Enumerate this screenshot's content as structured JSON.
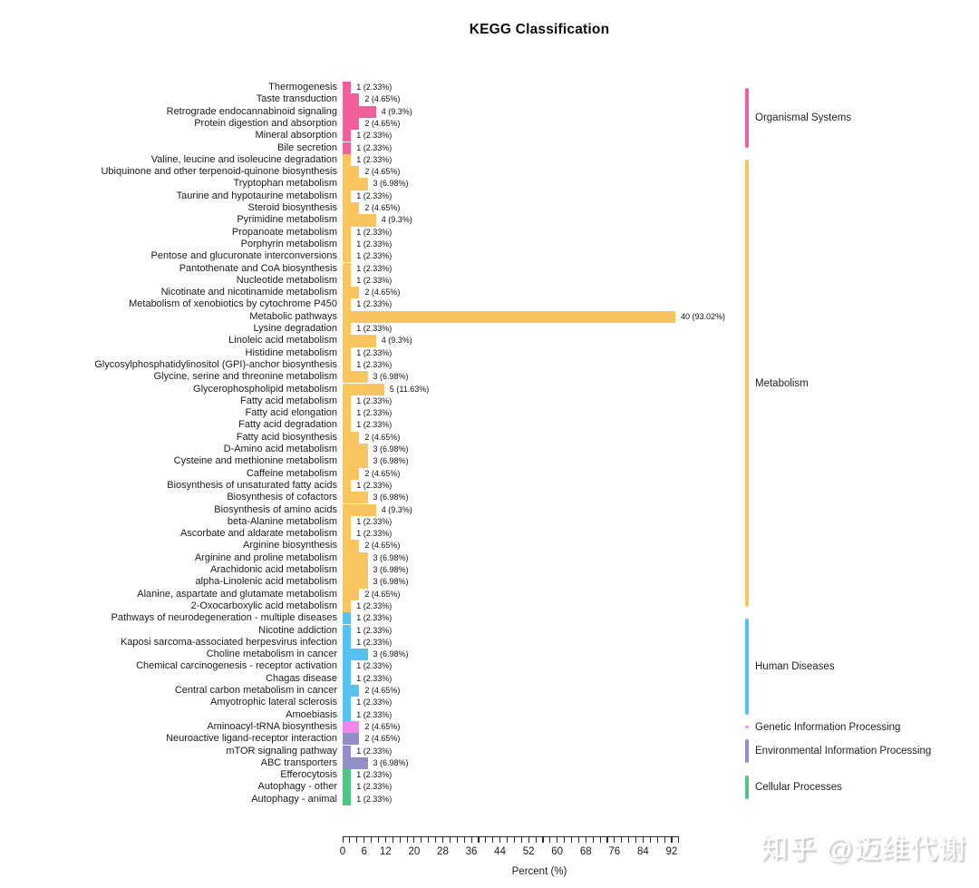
{
  "watermark": "知乎 @迈维代谢",
  "chart_data": {
    "type": "bar",
    "orientation": "horizontal",
    "title": "KEGG Classification",
    "xlabel": "Percent (%)",
    "xlim": [
      0,
      94
    ],
    "x_tick_labels": [
      0,
      6,
      12,
      20,
      28,
      36,
      44,
      52,
      60,
      68,
      76,
      84,
      92
    ],
    "x_minor_tick_step": 2,
    "grid": false,
    "legend_position": "right",
    "groups": [
      {
        "name": "Organismal Systems",
        "color": "#F2609C"
      },
      {
        "name": "Metabolism",
        "color": "#FAC45F"
      },
      {
        "name": "Human Diseases",
        "color": "#56C2F2"
      },
      {
        "name": "Genetic Information Processing",
        "color": "#F286EC"
      },
      {
        "name": "Environmental Information Processing",
        "color": "#908EC6"
      },
      {
        "name": "Cellular Processes",
        "color": "#4EC687"
      }
    ],
    "rows": [
      {
        "pathway": "Thermogenesis",
        "count": 1,
        "percent": 2.33,
        "label": "1 (2.33%)",
        "group": "Organismal Systems"
      },
      {
        "pathway": "Taste transduction",
        "count": 2,
        "percent": 4.65,
        "label": "2 (4.65%)",
        "group": "Organismal Systems"
      },
      {
        "pathway": "Retrograde endocannabinoid signaling",
        "count": 4,
        "percent": 9.3,
        "label": "4 (9.3%)",
        "group": "Organismal Systems"
      },
      {
        "pathway": "Protein digestion and absorption",
        "count": 2,
        "percent": 4.65,
        "label": "2 (4.65%)",
        "group": "Organismal Systems"
      },
      {
        "pathway": "Mineral absorption",
        "count": 1,
        "percent": 2.33,
        "label": "1 (2.33%)",
        "group": "Organismal Systems"
      },
      {
        "pathway": "Bile secretion",
        "count": 1,
        "percent": 2.33,
        "label": "1 (2.33%)",
        "group": "Organismal Systems"
      },
      {
        "pathway": "Valine, leucine and isoleucine degradation",
        "count": 1,
        "percent": 2.33,
        "label": "1 (2.33%)",
        "group": "Metabolism"
      },
      {
        "pathway": "Ubiquinone and other terpenoid-quinone biosynthesis",
        "count": 2,
        "percent": 4.65,
        "label": "2 (4.65%)",
        "group": "Metabolism"
      },
      {
        "pathway": "Tryptophan metabolism",
        "count": 3,
        "percent": 6.98,
        "label": "3 (6.98%)",
        "group": "Metabolism"
      },
      {
        "pathway": "Taurine and hypotaurine metabolism",
        "count": 1,
        "percent": 2.33,
        "label": "1 (2.33%)",
        "group": "Metabolism"
      },
      {
        "pathway": "Steroid biosynthesis",
        "count": 2,
        "percent": 4.65,
        "label": "2 (4.65%)",
        "group": "Metabolism"
      },
      {
        "pathway": "Pyrimidine metabolism",
        "count": 4,
        "percent": 9.3,
        "label": "4 (9.3%)",
        "group": "Metabolism"
      },
      {
        "pathway": "Propanoate metabolism",
        "count": 1,
        "percent": 2.33,
        "label": "1 (2.33%)",
        "group": "Metabolism"
      },
      {
        "pathway": "Porphyrin metabolism",
        "count": 1,
        "percent": 2.33,
        "label": "1 (2.33%)",
        "group": "Metabolism"
      },
      {
        "pathway": "Pentose and glucuronate interconversions",
        "count": 1,
        "percent": 2.33,
        "label": "1 (2.33%)",
        "group": "Metabolism"
      },
      {
        "pathway": "Pantothenate and CoA biosynthesis",
        "count": 1,
        "percent": 2.33,
        "label": "1 (2.33%)",
        "group": "Metabolism"
      },
      {
        "pathway": "Nucleotide metabolism",
        "count": 1,
        "percent": 2.33,
        "label": "1 (2.33%)",
        "group": "Metabolism"
      },
      {
        "pathway": "Nicotinate and nicotinamide metabolism",
        "count": 2,
        "percent": 4.65,
        "label": "2 (4.65%)",
        "group": "Metabolism"
      },
      {
        "pathway": "Metabolism of xenobiotics by cytochrome P450",
        "count": 1,
        "percent": 2.33,
        "label": "1 (2.33%)",
        "group": "Metabolism"
      },
      {
        "pathway": "Metabolic pathways",
        "count": 40,
        "percent": 93.02,
        "label": "40 (93.02%)",
        "group": "Metabolism"
      },
      {
        "pathway": "Lysine degradation",
        "count": 1,
        "percent": 2.33,
        "label": "1 (2.33%)",
        "group": "Metabolism"
      },
      {
        "pathway": "Linoleic acid metabolism",
        "count": 4,
        "percent": 9.3,
        "label": "4 (9.3%)",
        "group": "Metabolism"
      },
      {
        "pathway": "Histidine metabolism",
        "count": 1,
        "percent": 2.33,
        "label": "1 (2.33%)",
        "group": "Metabolism"
      },
      {
        "pathway": "Glycosylphosphatidylinositol (GPI)-anchor biosynthesis",
        "count": 1,
        "percent": 2.33,
        "label": "1 (2.33%)",
        "group": "Metabolism"
      },
      {
        "pathway": "Glycine, serine and threonine metabolism",
        "count": 3,
        "percent": 6.98,
        "label": "3 (6.98%)",
        "group": "Metabolism"
      },
      {
        "pathway": "Glycerophospholipid metabolism",
        "count": 5,
        "percent": 11.63,
        "label": "5 (11.63%)",
        "group": "Metabolism"
      },
      {
        "pathway": "Fatty acid metabolism",
        "count": 1,
        "percent": 2.33,
        "label": "1 (2.33%)",
        "group": "Metabolism"
      },
      {
        "pathway": "Fatty acid elongation",
        "count": 1,
        "percent": 2.33,
        "label": "1 (2.33%)",
        "group": "Metabolism"
      },
      {
        "pathway": "Fatty acid degradation",
        "count": 1,
        "percent": 2.33,
        "label": "1 (2.33%)",
        "group": "Metabolism"
      },
      {
        "pathway": "Fatty acid biosynthesis",
        "count": 2,
        "percent": 4.65,
        "label": "2 (4.65%)",
        "group": "Metabolism"
      },
      {
        "pathway": "D-Amino acid metabolism",
        "count": 3,
        "percent": 6.98,
        "label": "3 (6.98%)",
        "group": "Metabolism"
      },
      {
        "pathway": "Cysteine and methionine metabolism",
        "count": 3,
        "percent": 6.98,
        "label": "3 (6.98%)",
        "group": "Metabolism"
      },
      {
        "pathway": "Caffeine metabolism",
        "count": 2,
        "percent": 4.65,
        "label": "2 (4.65%)",
        "group": "Metabolism"
      },
      {
        "pathway": "Biosynthesis of unsaturated fatty acids",
        "count": 1,
        "percent": 2.33,
        "label": "1 (2.33%)",
        "group": "Metabolism"
      },
      {
        "pathway": "Biosynthesis of cofactors",
        "count": 3,
        "percent": 6.98,
        "label": "3 (6.98%)",
        "group": "Metabolism"
      },
      {
        "pathway": "Biosynthesis of amino acids",
        "count": 4,
        "percent": 9.3,
        "label": "4 (9.3%)",
        "group": "Metabolism"
      },
      {
        "pathway": "beta-Alanine metabolism",
        "count": 1,
        "percent": 2.33,
        "label": "1 (2.33%)",
        "group": "Metabolism"
      },
      {
        "pathway": "Ascorbate and aldarate metabolism",
        "count": 1,
        "percent": 2.33,
        "label": "1 (2.33%)",
        "group": "Metabolism"
      },
      {
        "pathway": "Arginine biosynthesis",
        "count": 2,
        "percent": 4.65,
        "label": "2 (4.65%)",
        "group": "Metabolism"
      },
      {
        "pathway": "Arginine and proline metabolism",
        "count": 3,
        "percent": 6.98,
        "label": "3 (6.98%)",
        "group": "Metabolism"
      },
      {
        "pathway": "Arachidonic acid metabolism",
        "count": 3,
        "percent": 6.98,
        "label": "3 (6.98%)",
        "group": "Metabolism"
      },
      {
        "pathway": "alpha-Linolenic acid metabolism",
        "count": 3,
        "percent": 6.98,
        "label": "3 (6.98%)",
        "group": "Metabolism"
      },
      {
        "pathway": "Alanine, aspartate and glutamate metabolism",
        "count": 2,
        "percent": 4.65,
        "label": "2 (4.65%)",
        "group": "Metabolism"
      },
      {
        "pathway": "2-Oxocarboxylic acid metabolism",
        "count": 1,
        "percent": 2.33,
        "label": "1 (2.33%)",
        "group": "Metabolism"
      },
      {
        "pathway": "Pathways of neurodegeneration - multiple diseases",
        "count": 1,
        "percent": 2.33,
        "label": "1 (2.33%)",
        "group": "Human Diseases"
      },
      {
        "pathway": "Nicotine addiction",
        "count": 1,
        "percent": 2.33,
        "label": "1 (2.33%)",
        "group": "Human Diseases"
      },
      {
        "pathway": "Kaposi sarcoma-associated herpesvirus infection",
        "count": 1,
        "percent": 2.33,
        "label": "1 (2.33%)",
        "group": "Human Diseases"
      },
      {
        "pathway": "Choline metabolism in cancer",
        "count": 3,
        "percent": 6.98,
        "label": "3 (6.98%)",
        "group": "Human Diseases"
      },
      {
        "pathway": "Chemical carcinogenesis - receptor activation",
        "count": 1,
        "percent": 2.33,
        "label": "1 (2.33%)",
        "group": "Human Diseases"
      },
      {
        "pathway": "Chagas disease",
        "count": 1,
        "percent": 2.33,
        "label": "1 (2.33%)",
        "group": "Human Diseases"
      },
      {
        "pathway": "Central carbon metabolism in cancer",
        "count": 2,
        "percent": 4.65,
        "label": "2 (4.65%)",
        "group": "Human Diseases"
      },
      {
        "pathway": "Amyotrophic lateral sclerosis",
        "count": 1,
        "percent": 2.33,
        "label": "1 (2.33%)",
        "group": "Human Diseases"
      },
      {
        "pathway": "Amoebiasis",
        "count": 1,
        "percent": 2.33,
        "label": "1 (2.33%)",
        "group": "Human Diseases"
      },
      {
        "pathway": "Aminoacyl-tRNA biosynthesis",
        "count": 2,
        "percent": 4.65,
        "label": "2 (4.65%)",
        "group": "Genetic Information Processing"
      },
      {
        "pathway": "Neuroactive ligand-receptor interaction",
        "count": 2,
        "percent": 4.65,
        "label": "2 (4.65%)",
        "group": "Environmental Information Processing"
      },
      {
        "pathway": "mTOR signaling pathway",
        "count": 1,
        "percent": 2.33,
        "label": "1 (2.33%)",
        "group": "Environmental Information Processing"
      },
      {
        "pathway": "ABC transporters",
        "count": 3,
        "percent": 6.98,
        "label": "3 (6.98%)",
        "group": "Environmental Information Processing"
      },
      {
        "pathway": "Efferocytosis",
        "count": 1,
        "percent": 2.33,
        "label": "1 (2.33%)",
        "group": "Cellular Processes"
      },
      {
        "pathway": "Autophagy - other",
        "count": 1,
        "percent": 2.33,
        "label": "1 (2.33%)",
        "group": "Cellular Processes"
      },
      {
        "pathway": "Autophagy - animal",
        "count": 1,
        "percent": 2.33,
        "label": "1 (2.33%)",
        "group": "Cellular Processes"
      }
    ]
  }
}
